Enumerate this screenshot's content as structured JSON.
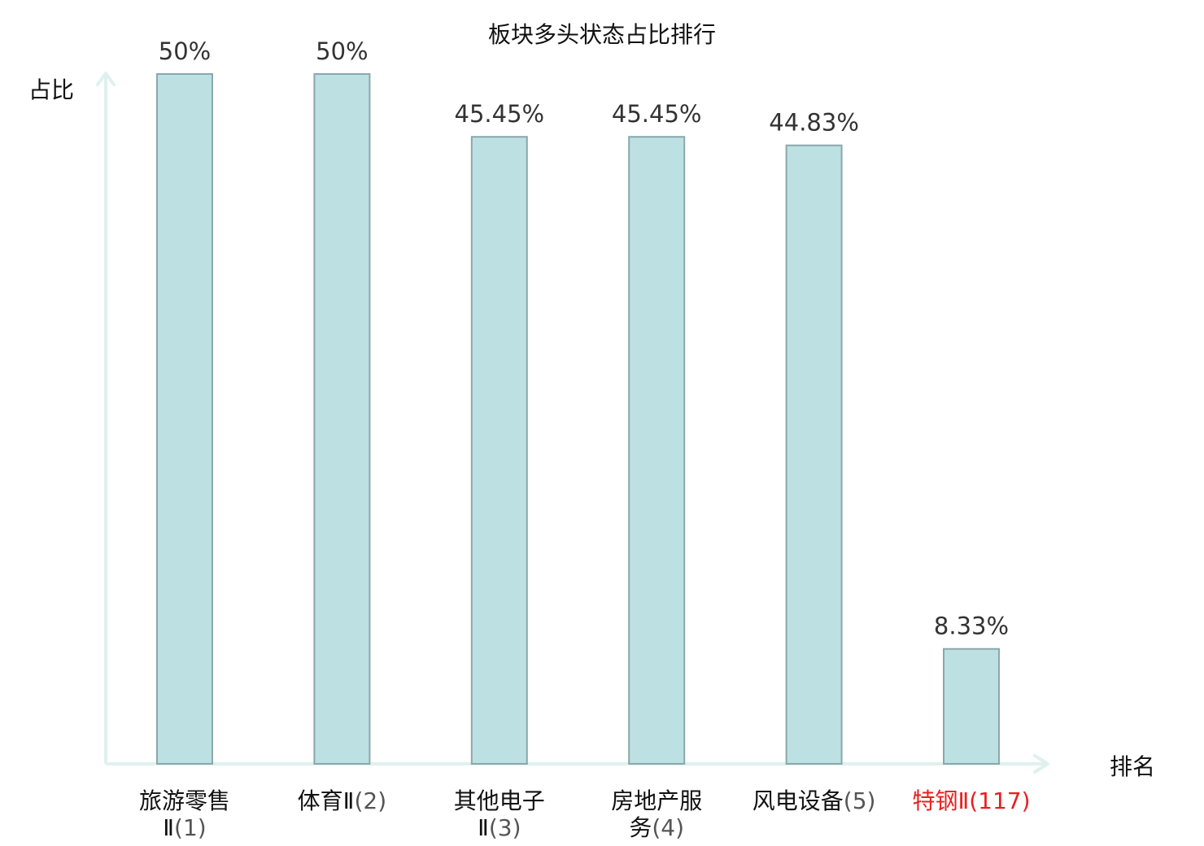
{
  "chart_data": {
    "type": "bar",
    "title": "板块多头状态占比排行",
    "ylabel": "占比",
    "xlabel": "排名",
    "ylim": [
      0,
      50
    ],
    "grid": false,
    "categories": [
      {
        "name_lines": [
          "旅游零售",
          "Ⅱ"
        ],
        "rank": "(1)",
        "highlight": false
      },
      {
        "name_lines": [
          "体育Ⅱ"
        ],
        "rank": "(2)",
        "highlight": false
      },
      {
        "name_lines": [
          "其他电子",
          "Ⅱ"
        ],
        "rank": "(3)",
        "highlight": false
      },
      {
        "name_lines": [
          "房地产服",
          "务"
        ],
        "rank": "(4)",
        "highlight": false
      },
      {
        "name_lines": [
          "风电设备"
        ],
        "rank": "(5)",
        "highlight": false
      },
      {
        "name_lines": [
          "特钢Ⅱ"
        ],
        "rank": "(117)",
        "highlight": true
      }
    ],
    "values": [
      50,
      50,
      45.45,
      45.45,
      44.83,
      8.33
    ],
    "value_labels": [
      "50%",
      "50%",
      "45.45%",
      "45.45%",
      "44.83%",
      "8.33%"
    ],
    "colors": {
      "bar_fill": "#bde0e3",
      "bar_stroke": "#8aa8ab",
      "axis": "#dff1ee",
      "highlight": "#e8201f",
      "text": "#111111",
      "value_text": "#333333",
      "rank_text": "#555555"
    }
  }
}
